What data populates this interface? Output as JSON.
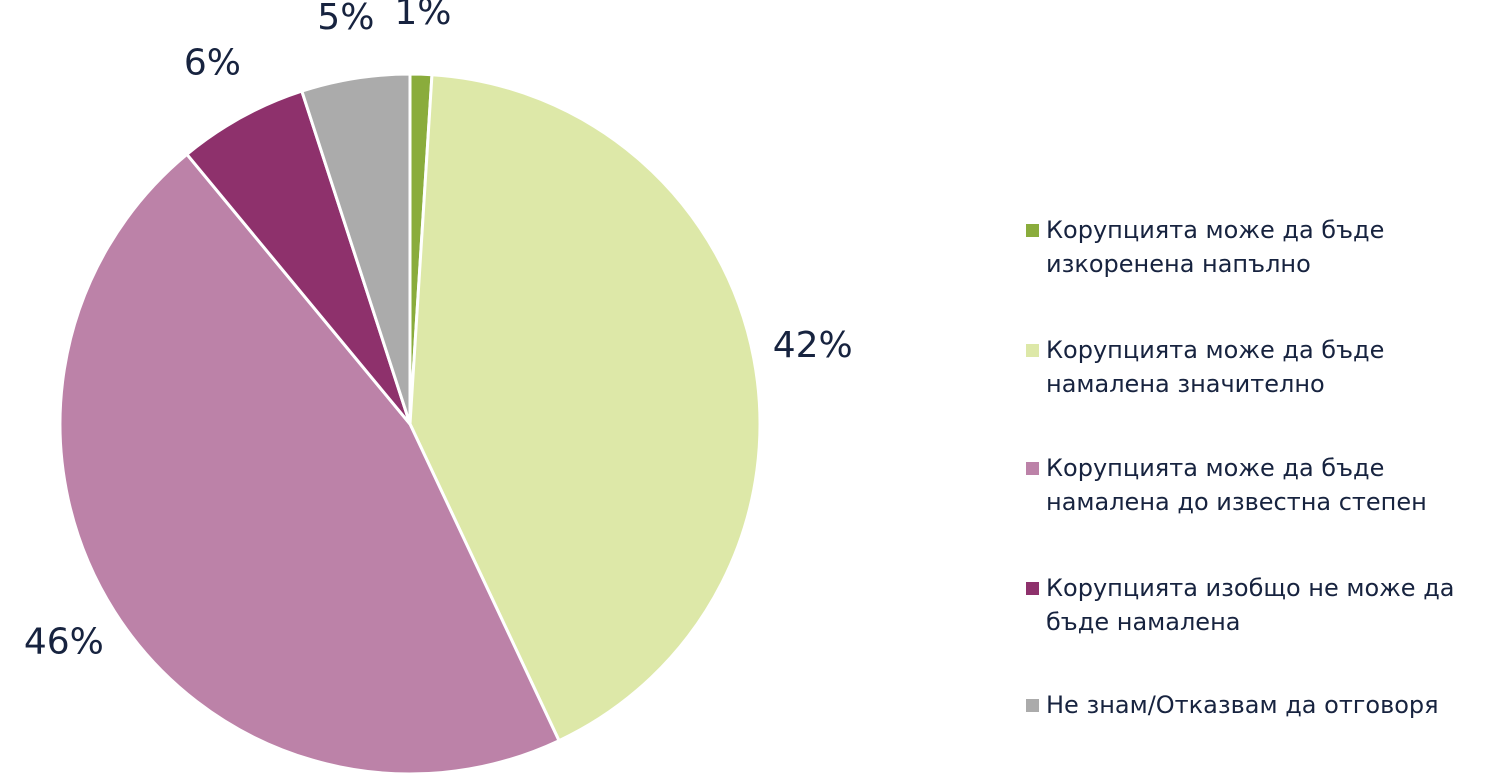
{
  "chart_data": {
    "type": "pie",
    "categories": [
      "Корупцията може да бъде изкоренена напълно",
      "Корупцията може да бъде намалена значително",
      "Корупцията може да бъде намалена до известна степен",
      "Корупцията изобщо не може да бъде намалена",
      "Не знам/Отказвам да отговоря"
    ],
    "values": [
      1,
      42,
      46,
      6,
      5
    ],
    "value_labels": [
      "1%",
      "42%",
      "46%",
      "6%",
      "5%"
    ],
    "colors": [
      "#8aac3c",
      "#dde8a8",
      "#bc82a8",
      "#8e316c",
      "#ababab"
    ],
    "legend": "right"
  }
}
